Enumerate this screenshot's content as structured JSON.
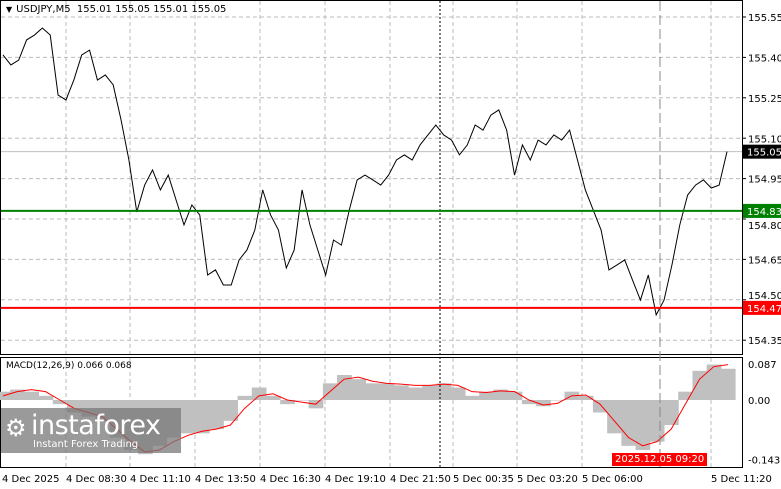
{
  "header": {
    "symbol": "USDJPY,M5",
    "ohlc": "155.01 155.05 155.01 155.05"
  },
  "price_axis": {
    "ticks": [
      "155.55",
      "155.40",
      "155.25",
      "155.10",
      "154.95",
      "154.80",
      "154.65",
      "154.50",
      "154.35"
    ],
    "min": 154.3,
    "max": 155.6
  },
  "current_price": {
    "label": "155.05",
    "value": 155.05,
    "color": "#000000"
  },
  "levels": [
    {
      "label": "154.83",
      "value": 154.83,
      "color": "#008000"
    },
    {
      "label": "154.47",
      "value": 154.47,
      "color": "#ff0000"
    }
  ],
  "time_axis": {
    "labels": [
      "4 Dec 2025",
      "4 Dec 08:30",
      "4 Dec 11:10",
      "4 Dec 13:50",
      "4 Dec 16:30",
      "4 Dec 19:10",
      "4 Dec 21:50",
      "5 Dec 00:35",
      "5 Dec 03:20",
      "5 Dec 06:00",
      "5 Dec 11:20"
    ],
    "highlight": "2025.12.05 09:20"
  },
  "price_series": [
    155.409,
    155.372,
    155.39,
    155.465,
    155.483,
    155.509,
    155.483,
    155.26,
    155.242,
    155.316,
    155.409,
    155.427,
    155.316,
    155.335,
    155.298,
    155.168,
    155.019,
    154.826,
    154.926,
    154.982,
    154.908,
    154.963,
    154.87,
    154.778,
    154.852,
    154.815,
    154.592,
    154.611,
    154.555,
    154.555,
    154.648,
    154.685,
    154.759,
    154.908,
    154.815,
    154.759,
    154.618,
    154.685,
    154.908,
    154.778,
    154.685,
    154.592,
    154.722,
    154.703,
    154.833,
    154.945,
    154.963,
    154.945,
    154.926,
    154.963,
    155.019,
    155.038,
    155.019,
    155.075,
    155.112,
    155.149,
    155.112,
    155.093,
    155.038,
    155.075,
    155.149,
    155.13,
    155.186,
    155.205,
    155.13,
    154.963,
    155.075,
    155.019,
    155.093,
    155.075,
    155.112,
    155.093,
    155.13,
    155.019,
    154.908,
    154.833,
    154.759,
    154.611,
    154.629,
    154.648,
    154.573,
    154.499,
    154.592,
    154.444,
    154.499,
    154.629,
    154.778,
    154.889,
    154.926,
    154.945,
    154.915,
    154.926,
    155.05
  ],
  "macd": {
    "label": "MACD(12,26,9) 0.066 0.068",
    "ticks": [
      "0.087",
      "0.00",
      "-0.143"
    ],
    "max": 0.095,
    "min": -0.15,
    "histogram": [
      0.02,
      0.025,
      0.02,
      0.01,
      -0.01,
      -0.03,
      -0.04,
      -0.05,
      -0.09,
      -0.12,
      -0.13,
      -0.11,
      -0.09,
      -0.08,
      -0.08,
      -0.07,
      -0.05,
      0.01,
      0.03,
      0.01,
      -0.01,
      0.0,
      -0.02,
      0.04,
      0.06,
      0.05,
      0.04,
      0.04,
      0.035,
      0.03,
      0.035,
      0.04,
      0.03,
      0.01,
      0.02,
      0.025,
      0.02,
      -0.01,
      -0.015,
      0.0,
      0.02,
      0.01,
      -0.03,
      -0.08,
      -0.11,
      -0.12,
      -0.1,
      -0.06,
      0.02,
      0.07,
      0.085,
      0.075
    ],
    "signal": [
      0.01,
      0.02,
      0.025,
      0.02,
      0.0,
      -0.02,
      -0.03,
      -0.04,
      -0.07,
      -0.1,
      -0.125,
      -0.12,
      -0.1,
      -0.085,
      -0.075,
      -0.07,
      -0.06,
      -0.02,
      0.01,
      0.015,
      0.0,
      -0.005,
      -0.01,
      0.02,
      0.05,
      0.055,
      0.045,
      0.04,
      0.038,
      0.035,
      0.035,
      0.038,
      0.035,
      0.02,
      0.018,
      0.022,
      0.02,
      0.0,
      -0.012,
      -0.008,
      0.01,
      0.012,
      -0.01,
      -0.05,
      -0.09,
      -0.11,
      -0.1,
      -0.07,
      -0.01,
      0.05,
      0.08,
      0.085
    ]
  }
}
